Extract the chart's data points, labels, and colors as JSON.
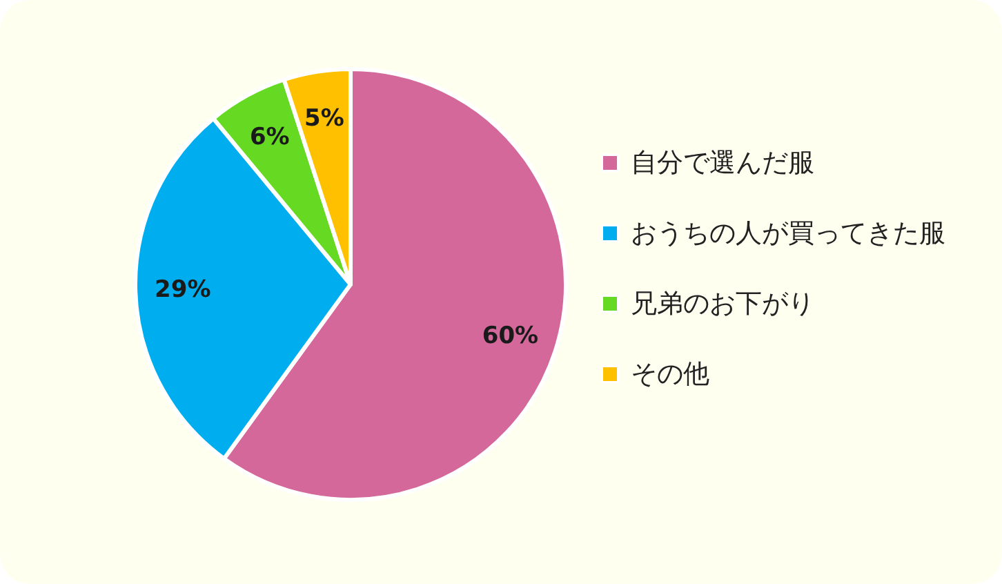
{
  "chart_data": {
    "type": "pie",
    "categories": [
      "自分で選んだ服",
      "おうちの人が買ってきた服",
      "兄弟のお下がり",
      "その他"
    ],
    "values": [
      60,
      29,
      6,
      5
    ],
    "colors": [
      "#d4689a",
      "#00aeef",
      "#66d922",
      "#ffc000"
    ],
    "value_labels": [
      "60%",
      "29%",
      "6%",
      "5%"
    ],
    "legend": "right"
  }
}
